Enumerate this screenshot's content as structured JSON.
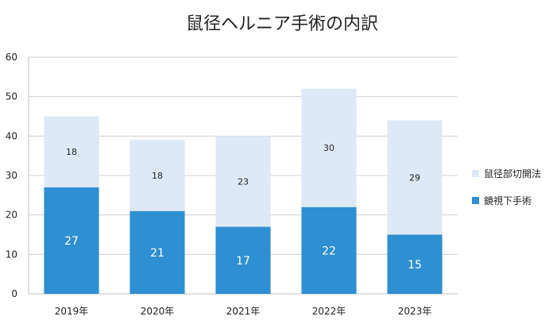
{
  "chart_data": {
    "type": "bar",
    "stacked": true,
    "title": "鼠径ヘルニア手術の内訳",
    "categories": [
      "2019年",
      "2020年",
      "2021年",
      "2022年",
      "2023年"
    ],
    "series": [
      {
        "name": "鏡視下手術",
        "values": [
          27,
          21,
          17,
          22,
          15
        ],
        "color": "#2e8fd2",
        "label_color": "#ffffff"
      },
      {
        "name": "鼠径部切開法",
        "values": [
          18,
          18,
          23,
          30,
          29
        ],
        "color": "#dde9f6",
        "label_color": "#222222"
      }
    ],
    "legend_order": [
      1,
      0
    ],
    "ylim": [
      0,
      60
    ],
    "yticks": [
      0,
      10,
      20,
      30,
      40,
      50,
      60
    ],
    "grid": true,
    "legend": "right"
  }
}
